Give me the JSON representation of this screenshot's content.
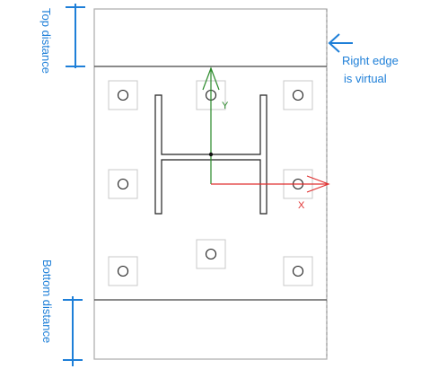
{
  "annotations": {
    "top_distance": "Top distance",
    "bottom_distance": "Bottom distance",
    "right_edge_line1": "Right edge",
    "right_edge_line2": "is virtual"
  },
  "axes": {
    "x_label": "X",
    "y_label": "Y"
  },
  "colors": {
    "annotation_blue": "#1e7fd8",
    "x_axis_red": "#e03030",
    "y_axis_green": "#2a8a2a",
    "plate_border": "#a0a0a0",
    "outline_dark": "#333333"
  }
}
